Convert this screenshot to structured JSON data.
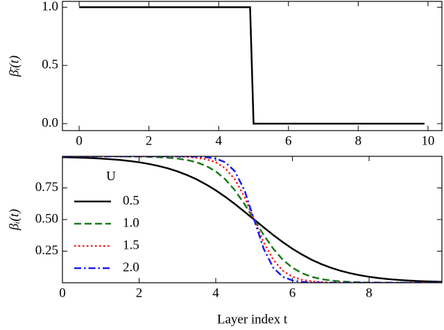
{
  "chart_data": [
    {
      "type": "line",
      "ylabel": "β̄ᵢ(t)",
      "x": [
        0,
        4.9,
        5.0,
        9.9
      ],
      "series": [
        {
          "color": "#000000",
          "linestyle": "solid",
          "values": [
            1,
            1,
            0,
            0
          ]
        }
      ],
      "xlim": [
        -0.48,
        10.4
      ],
      "ylim": [
        -0.06,
        1.05
      ],
      "xticks": [
        0,
        2,
        4,
        6,
        8,
        10
      ],
      "yticks": [
        {
          "value": 0,
          "label": "0.0"
        },
        {
          "value": 0.5,
          "label": "0.5"
        },
        {
          "value": 1,
          "label": "1.0"
        }
      ]
    },
    {
      "type": "line",
      "ylabel": "βᵢ(t)",
      "xlabel": "Layer index t",
      "legend_title": "U",
      "legend": "upper left",
      "x": [
        0,
        0.25,
        0.5,
        0.75,
        1,
        1.25,
        1.5,
        1.75,
        2,
        2.25,
        2.5,
        2.75,
        3,
        3.25,
        3.5,
        3.75,
        4,
        4.25,
        4.5,
        4.75,
        5,
        5.25,
        5.5,
        5.75,
        6,
        6.25,
        6.5,
        6.75,
        7,
        7.25,
        7.5,
        7.75,
        8,
        8.25,
        8.5,
        8.75,
        9,
        9.25,
        9.5,
        9.75,
        9.9
      ],
      "series": [
        {
          "name": "0.5",
          "color": "#000000",
          "linestyle": "solid",
          "values": [
            0.993,
            0.991,
            0.989,
            0.986,
            0.982,
            0.977,
            0.971,
            0.963,
            0.953,
            0.94,
            0.924,
            0.905,
            0.881,
            0.852,
            0.818,
            0.777,
            0.731,
            0.679,
            0.622,
            0.562,
            0.5,
            0.438,
            0.378,
            0.321,
            0.269,
            0.223,
            0.182,
            0.148,
            0.119,
            0.095,
            0.076,
            0.06,
            0.047,
            0.037,
            0.029,
            0.023,
            0.018,
            0.014,
            0.011,
            0.009,
            0.007
          ]
        },
        {
          "name": "1.0",
          "color": "#1a7a1a",
          "linestyle": "dashed",
          "values": [
            1.0,
            1.0,
            1.0,
            1.0,
            1.0,
            0.999,
            0.999,
            0.998,
            0.998,
            0.996,
            0.993,
            0.989,
            0.982,
            0.971,
            0.953,
            0.924,
            0.881,
            0.818,
            0.731,
            0.622,
            0.5,
            0.378,
            0.269,
            0.182,
            0.119,
            0.076,
            0.047,
            0.029,
            0.018,
            0.011,
            0.007,
            0.004,
            0.002,
            0.002,
            0.001,
            0.001,
            0.0,
            0.0,
            0.0,
            0.0,
            0.0
          ]
        },
        {
          "name": "1.5",
          "color": "#ff1a1a",
          "linestyle": "dotted",
          "values": [
            1.0,
            1.0,
            1.0,
            1.0,
            1.0,
            1.0,
            1.0,
            1.0,
            1.0,
            1.0,
            0.999,
            0.999,
            0.998,
            0.995,
            0.989,
            0.977,
            0.953,
            0.905,
            0.818,
            0.679,
            0.5,
            0.321,
            0.182,
            0.095,
            0.047,
            0.023,
            0.011,
            0.005,
            0.002,
            0.001,
            0.001,
            0.0,
            0.0,
            0.0,
            0.0,
            0.0,
            0.0,
            0.0,
            0.0,
            0.0,
            0.0
          ]
        },
        {
          "name": "2.0",
          "color": "#1a1aee",
          "linestyle": "dashdot",
          "values": [
            1.0,
            1.0,
            1.0,
            1.0,
            1.0,
            1.0,
            1.0,
            1.0,
            1.0,
            1.0,
            1.0,
            1.0,
            1.0,
            0.999,
            0.998,
            0.993,
            0.982,
            0.953,
            0.881,
            0.731,
            0.5,
            0.269,
            0.119,
            0.047,
            0.018,
            0.007,
            0.002,
            0.001,
            0.0,
            0.0,
            0.0,
            0.0,
            0.0,
            0.0,
            0.0,
            0.0,
            0.0,
            0.0,
            0.0,
            0.0,
            0.0
          ]
        }
      ],
      "xlim": [
        0,
        9.9
      ],
      "ylim": [
        0,
        1.0
      ],
      "xticks": [
        0,
        2,
        4,
        6,
        8
      ],
      "yticks": [
        {
          "value": 0.25,
          "label": "0.25"
        },
        {
          "value": 0.5,
          "label": "0.50"
        },
        {
          "value": 0.75,
          "label": "0.75"
        }
      ]
    }
  ]
}
